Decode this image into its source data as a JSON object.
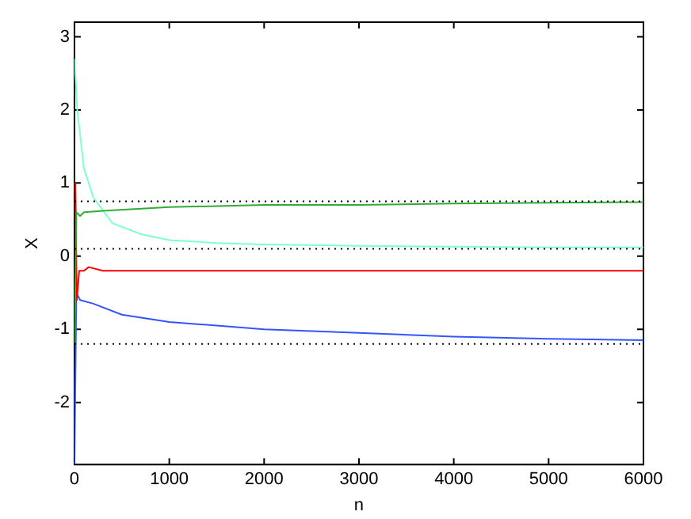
{
  "chart_data": {
    "type": "line",
    "xlabel": "n",
    "ylabel": "X",
    "xlim": [
      0,
      6000
    ],
    "xticks": [
      0,
      1000,
      2000,
      3000,
      4000,
      5000,
      6000
    ],
    "ylim": [
      -2.85,
      3.2
    ],
    "yticks": [
      -2,
      -1,
      0,
      1,
      2,
      3
    ],
    "grid": false,
    "legend": false,
    "marker": "none",
    "line_style": "solid",
    "series": [
      {
        "color": "#33aa33",
        "x": [
          0,
          20,
          60,
          100,
          300,
          1000,
          2000,
          3000,
          4000,
          5000,
          6000
        ],
        "values": [
          -1.2,
          0.6,
          0.55,
          0.6,
          0.62,
          0.67,
          0.7,
          0.7,
          0.72,
          0.73,
          0.74
        ]
      },
      {
        "color": "#7fffd4",
        "x": [
          0,
          30,
          100,
          200,
          400,
          700,
          1000,
          1500,
          2000,
          3000,
          4000,
          5000,
          6000
        ],
        "values": [
          2.7,
          2.0,
          1.2,
          0.8,
          0.45,
          0.3,
          0.22,
          0.18,
          0.16,
          0.14,
          0.13,
          0.12,
          0.12
        ]
      },
      {
        "color": "#ff0000",
        "x": [
          10,
          25,
          50,
          100,
          150,
          300,
          6000
        ],
        "values": [
          1.0,
          -0.6,
          -0.2,
          -0.2,
          -0.15,
          -0.2,
          -0.2
        ]
      },
      {
        "color": "#3355ff",
        "x": [
          0,
          20,
          60,
          200,
          500,
          1000,
          1500,
          2000,
          3000,
          4000,
          5000,
          6000
        ],
        "values": [
          -2.85,
          -0.5,
          -0.6,
          -0.65,
          -0.8,
          -0.9,
          -0.95,
          -1.0,
          -1.05,
          -1.1,
          -1.13,
          -1.15
        ]
      }
    ],
    "ref_lines": [
      {
        "axis": "y",
        "value": 0.75,
        "color": "#000000",
        "line_style": "dotted"
      },
      {
        "axis": "y",
        "value": 0.1,
        "color": "#000000",
        "line_style": "dotted"
      },
      {
        "axis": "y",
        "value": -1.2,
        "color": "#000000",
        "line_style": "dotted"
      }
    ]
  }
}
